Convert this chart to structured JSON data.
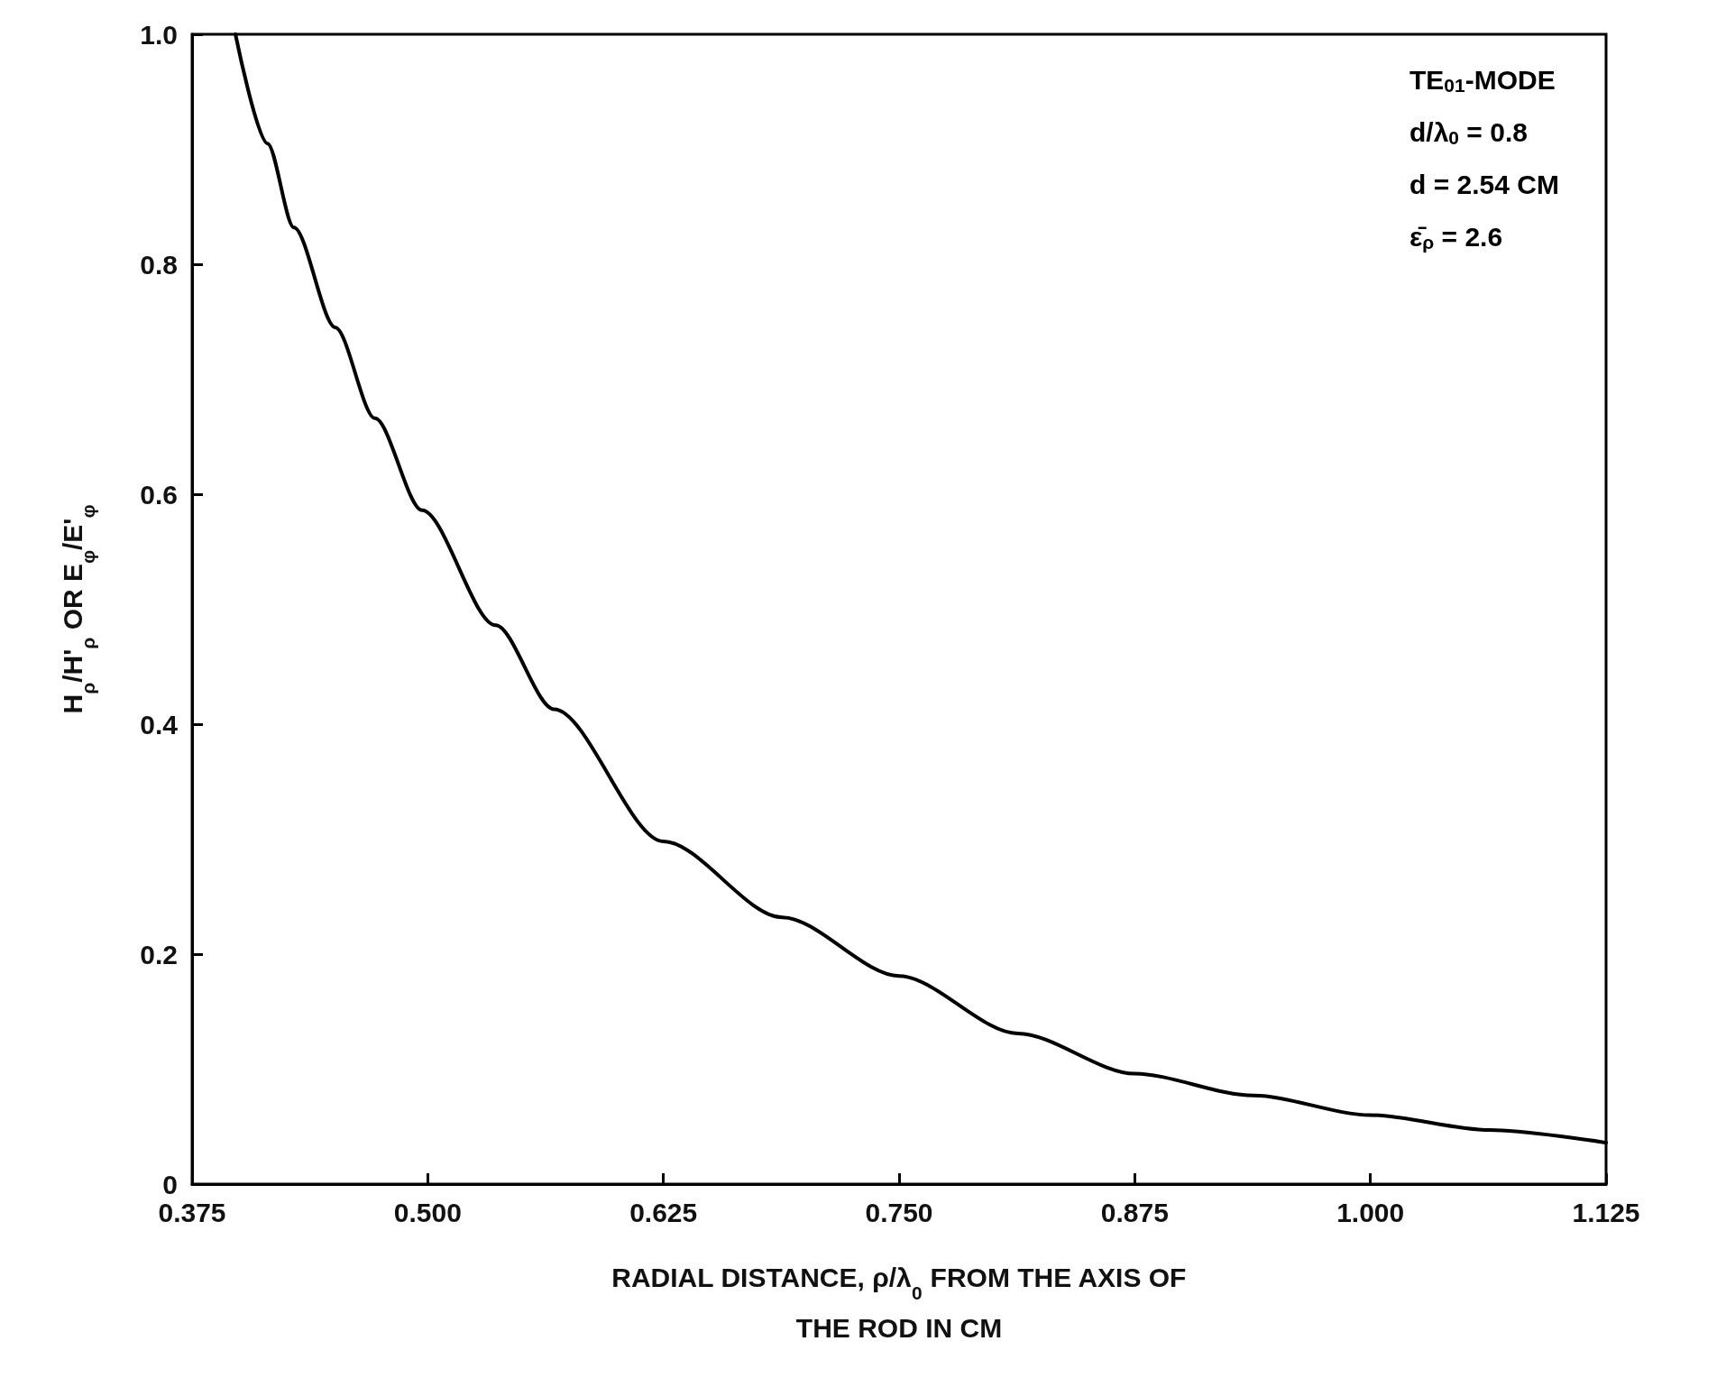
{
  "chart_data": {
    "type": "line",
    "xlabel": "RADIAL DISTANCE, ρ/λ$_{0}$ FROM THE AXIS OF\nTHE ROD IN CM",
    "ylabel": "H$_{ρ}$/H'$_{ρ}$ OR E$_{φ}$/E'$_{φ}$",
    "annotations": [
      "TE$_{01}$-MODE",
      "d/λ$_{0}$ = 0.8",
      "d = 2.54 CM",
      "ε̄$_{ρ}$ = 2.6"
    ],
    "x": [
      0.398,
      0.415,
      0.429,
      0.451,
      0.472,
      0.497,
      0.536,
      0.567,
      0.625,
      0.688,
      0.75,
      0.813,
      0.875,
      0.938,
      1.0,
      1.063,
      1.125
    ],
    "series": [
      {
        "color": "#000000",
        "values": [
          1.0,
          0.905,
          0.832,
          0.745,
          0.666,
          0.586,
          0.486,
          0.413,
          0.298,
          0.232,
          0.181,
          0.131,
          0.096,
          0.077,
          0.06,
          0.047,
          0.036
        ]
      }
    ],
    "xlim": [
      0.375,
      1.125
    ],
    "xticks": [
      {
        "value": 0.375,
        "label": "0.375"
      },
      {
        "value": 0.5,
        "label": "0.500"
      },
      {
        "value": 0.625,
        "label": "0.625"
      },
      {
        "value": 0.75,
        "label": "0.750"
      },
      {
        "value": 0.875,
        "label": "0.875"
      },
      {
        "value": 1.0,
        "label": "1.000"
      },
      {
        "value": 1.125,
        "label": "1.125"
      }
    ],
    "ylim": [
      0,
      1
    ],
    "yticks": [
      0,
      0.2,
      0.4,
      0.6,
      0.8,
      {
        "value": 1,
        "label": "1.0"
      }
    ],
    "marker": "none",
    "line_style": "solid"
  }
}
